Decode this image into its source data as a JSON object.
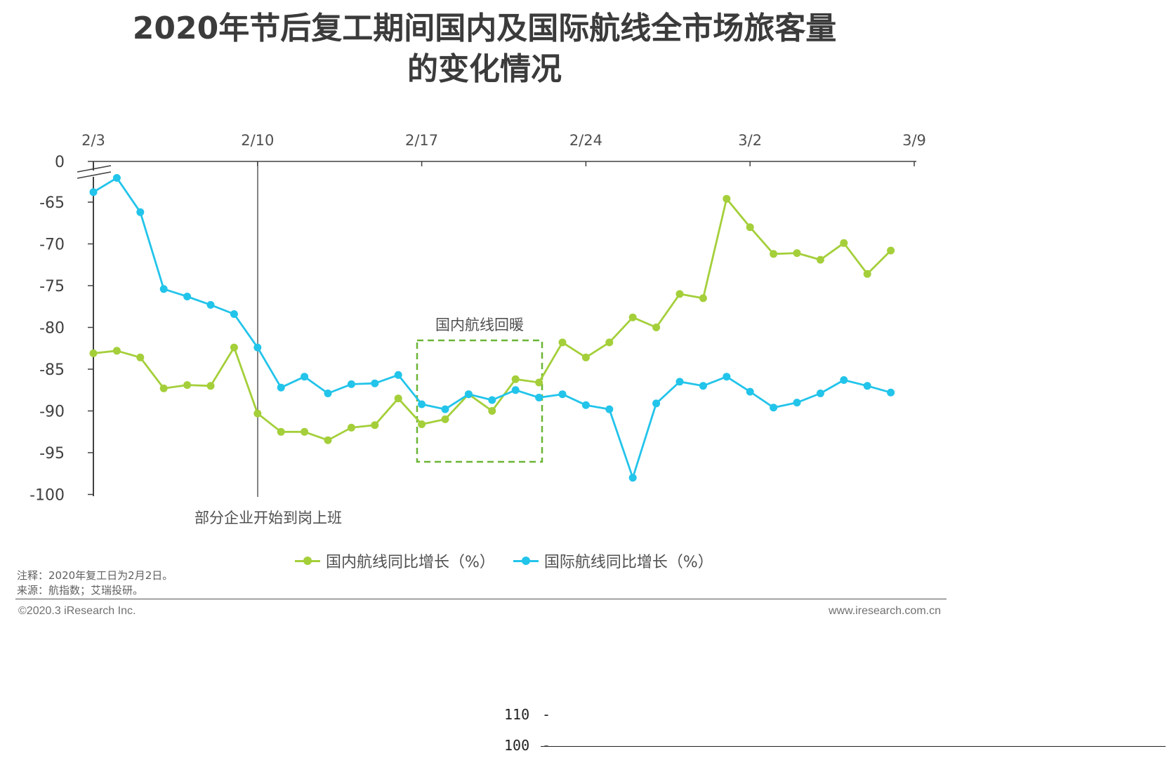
{
  "title_line1": "2020年节后复工期间国内及国际航线全市场旅客量",
  "title_line2": "的变化情况",
  "annotations": {
    "work_start": "部分企业开始到岗上班",
    "domestic_recovery": "国内航线回暖"
  },
  "notes": {
    "note": "注释：2020年复工日为2月2日。",
    "source": "来源：航指数；艾瑞投研。"
  },
  "copyright": "©2020.3 iResearch Inc.",
  "website": "www.iresearch.com.cn",
  "stray_axis": {
    "label_top": "110",
    "label_bottom": "100"
  },
  "colors": {
    "domestic": "#a4cf3a",
    "international": "#22c4ea",
    "highlight_box": "#6bb536",
    "axis": "#404040"
  },
  "chart_data": {
    "type": "line",
    "x_tick_labels": [
      "2/3",
      "2/10",
      "2/17",
      "2/24",
      "3/2",
      "3/9"
    ],
    "x_axis_position": "top",
    "y_ticks": [
      0,
      -65,
      -70,
      -75,
      -80,
      -85,
      -90,
      -95,
      -100
    ],
    "y_axis_break": "between 0 and -65",
    "ylim": [
      -100,
      0
    ],
    "grid": false,
    "legend_position": "bottom",
    "series": [
      {
        "name": "国内航线同比增长（%）",
        "color": "#a4cf3a",
        "values": [
          -83.1,
          -82.8,
          -83.6,
          -87.3,
          -86.9,
          -87.0,
          -82.4,
          -90.3,
          -92.5,
          -92.5,
          -93.5,
          -92.0,
          -91.7,
          -88.5,
          -91.6,
          -91.0,
          -88.0,
          -90.0,
          -86.2,
          -86.6,
          -81.8,
          -83.6,
          -81.8,
          -78.8,
          -80.0,
          -76.0,
          -76.5,
          -64.6,
          -68.0,
          -71.2,
          -71.1,
          -71.9,
          -69.9,
          -73.6,
          -70.8
        ],
        "days_after_2_3": [
          0,
          1,
          2,
          3,
          4,
          5,
          6,
          7,
          8,
          9,
          10,
          11,
          12,
          13,
          14,
          15,
          16,
          17,
          18,
          19,
          20,
          21,
          22,
          23,
          24,
          25,
          26,
          27,
          28,
          29,
          30,
          31,
          32,
          33,
          34
        ]
      },
      {
        "name": "国际航线同比增长（%）",
        "color": "#22c4ea",
        "values": [
          -63.8,
          -62.1,
          -66.2,
          -75.4,
          -76.3,
          -77.3,
          -78.4,
          -82.4,
          -87.2,
          -85.9,
          -87.9,
          -86.8,
          -86.7,
          -85.7,
          -89.2,
          -89.8,
          -88.0,
          -88.7,
          -87.5,
          -88.4,
          -88.0,
          -89.3,
          -89.8,
          -98.0,
          -89.1,
          -86.5,
          -87.0,
          -85.9,
          -87.7,
          -89.6,
          -89.0,
          -87.9,
          -86.3,
          -87.0,
          -87.8
        ],
        "days_after_2_3": [
          0,
          1,
          2,
          3,
          4,
          5,
          6,
          7,
          8,
          9,
          10,
          11,
          12,
          13,
          14,
          15,
          16,
          17,
          18,
          19,
          20,
          21,
          22,
          23,
          24,
          25,
          26,
          27,
          28,
          29,
          30,
          31,
          32,
          33,
          34
        ]
      }
    ],
    "reference_line_label": "部分企业开始到岗上班",
    "highlight_box_label": "国内航线回暖"
  }
}
